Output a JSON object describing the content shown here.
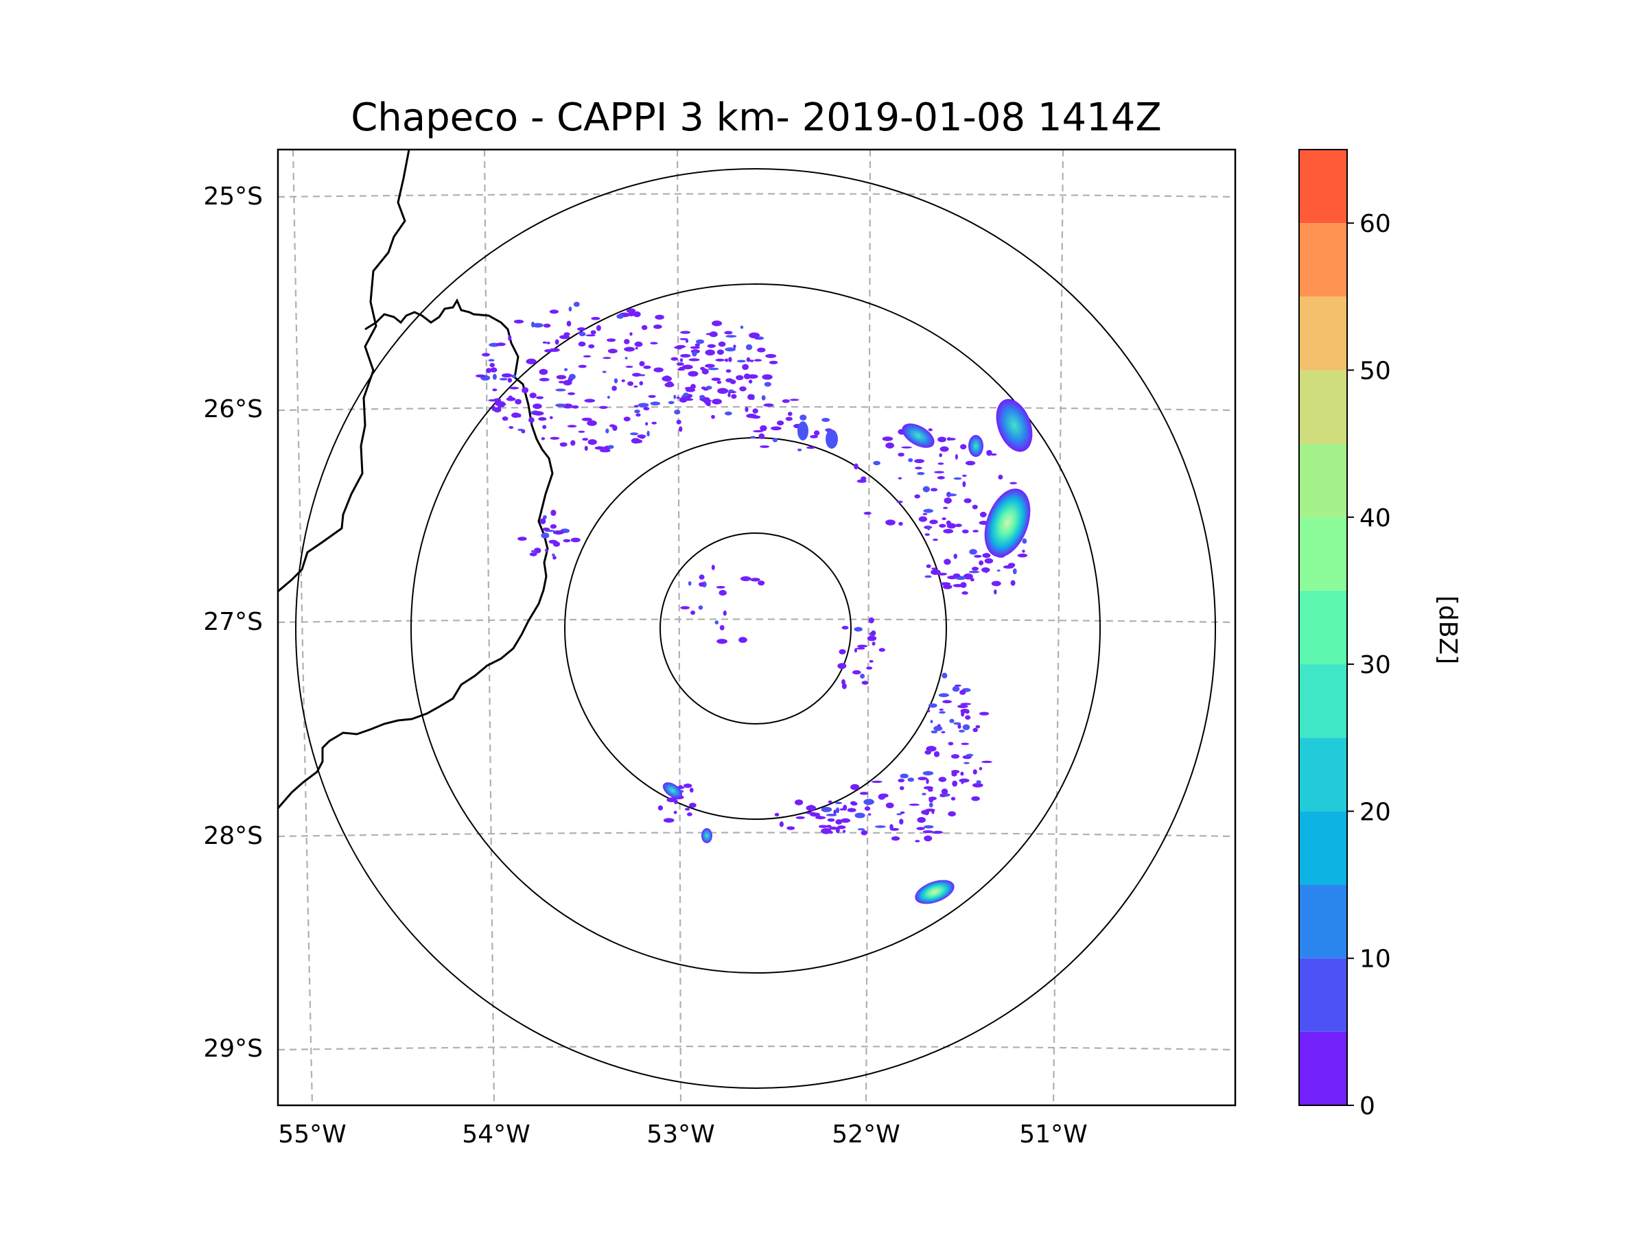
{
  "chart_data": {
    "type": "radar-ppi-map",
    "title": "Chapeco - CAPPI 3 km- 2019-01-08 1414Z",
    "xlabel": "",
    "ylabel": "",
    "x_ticks": [
      "55°W",
      "54°W",
      "53°W",
      "52°W",
      "51°W"
    ],
    "x_tick_values": [
      -55,
      -54,
      -53,
      -52,
      -51
    ],
    "y_ticks": [
      "25°S",
      "26°S",
      "27°S",
      "28°S",
      "29°S"
    ],
    "y_tick_values": [
      -25,
      -26,
      -27,
      -28,
      -29
    ],
    "xlim": [
      -55.1,
      -50.1
    ],
    "ylim": [
      -29.3,
      -24.8
    ],
    "grid": "dashed",
    "radar_center": {
      "lon": -52.6,
      "lat": -27.03
    },
    "range_rings_km": [
      50,
      100,
      150,
      200
    ],
    "colorbar": {
      "label": "[dBZ]",
      "ticks": [
        "0",
        "10",
        "20",
        "30",
        "40",
        "50",
        "60"
      ],
      "tick_values": [
        0,
        10,
        20,
        30,
        40,
        50,
        60
      ],
      "min": 0,
      "max": 65,
      "levels": [
        0,
        5,
        10,
        15,
        20,
        25,
        30,
        35,
        40,
        45,
        50,
        55,
        60,
        65
      ],
      "colors": [
        "#7320fb",
        "#4c53f6",
        "#2c85ef",
        "#0db4e3",
        "#22cbd9",
        "#3fe6c7",
        "#5cf6b1",
        "#8cfb9a",
        "#a5f28b",
        "#d1dc7c",
        "#f4c06c",
        "#ff9452",
        "#ff5b37",
        "#ff2215"
      ]
    },
    "echo_cells": [
      {
        "lon": -51.2,
        "lat": -26.5,
        "max_dbz": 38
      },
      {
        "lon": -51.25,
        "lat": -26.05,
        "max_dbz": 32
      },
      {
        "lon": -51.65,
        "lat": -28.27,
        "max_dbz": 42
      },
      {
        "lon": -51.75,
        "lat": -26.12,
        "max_dbz": 18
      },
      {
        "lon": -51.45,
        "lat": -26.18,
        "max_dbz": 15
      },
      {
        "lon": -52.95,
        "lat": -27.82,
        "max_dbz": 22
      },
      {
        "lon": -52.8,
        "lat": -28.02,
        "max_dbz": 12
      },
      {
        "lon": -53.4,
        "lat": -26.2,
        "max_dbz": 8
      },
      {
        "lon": -52.8,
        "lat": -25.8,
        "max_dbz": 6
      }
    ]
  }
}
